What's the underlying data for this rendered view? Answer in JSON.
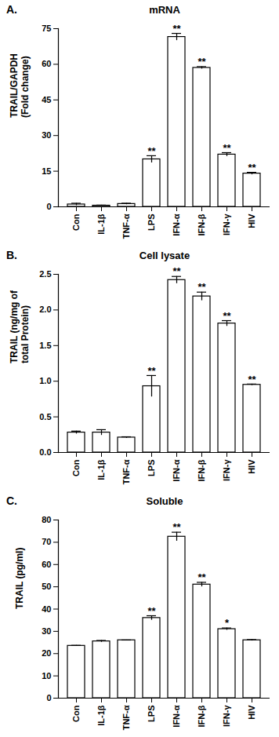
{
  "chart_data": [
    {
      "type": "bar",
      "panel": "A.",
      "title": "mRNA",
      "y_label": "TRAIL/GAPDH\n(Fold change)",
      "categories": [
        "Con",
        "IL-1β",
        "TNF-α",
        "LPS",
        "IFN-α",
        "IFN-β",
        "IFN-γ",
        "HIV"
      ],
      "values": [
        1,
        0.5,
        1.2,
        20,
        71.5,
        58.5,
        22,
        14
      ],
      "errors": [
        0.5,
        0.2,
        0.3,
        1.5,
        1.5,
        0.5,
        0.8,
        0.5
      ],
      "significance": [
        null,
        null,
        null,
        "**",
        "**",
        "**",
        "**",
        "**"
      ],
      "ylim": [
        0,
        75
      ],
      "yticks": [
        0,
        15,
        30,
        45,
        60,
        75
      ]
    },
    {
      "type": "bar",
      "panel": "B.",
      "title": "Cell lysate",
      "y_label": "TRAIL (ng/mg of\ntotal Protein)",
      "categories": [
        "Con",
        "IL-1β",
        "TNF-α",
        "LPS",
        "IFN-α",
        "IFN-β",
        "IFN-γ",
        "HIV"
      ],
      "values": [
        0.28,
        0.28,
        0.21,
        0.93,
        2.42,
        2.19,
        1.81,
        0.95
      ],
      "errors": [
        0.02,
        0.04,
        0.01,
        0.15,
        0.05,
        0.06,
        0.04,
        0.01
      ],
      "significance": [
        null,
        null,
        null,
        "**",
        "**",
        "**",
        "**",
        "**"
      ],
      "ylim": [
        0,
        2.5
      ],
      "yticks": [
        {
          "value": 0,
          "label": "0.0"
        },
        {
          "value": 0.5,
          "label": "0.5"
        },
        {
          "value": 1,
          "label": "1.0"
        },
        {
          "value": 1.5,
          "label": "1.5"
        },
        {
          "value": 2,
          "label": "2.0"
        },
        {
          "value": 2.5,
          "label": "2.5"
        }
      ]
    },
    {
      "type": "bar",
      "panel": "C.",
      "title": "Soluble",
      "y_label": "TRAIL (pg/ml)",
      "categories": [
        "Con",
        "IL-1β",
        "TNF-α",
        "LPS",
        "IFN-α",
        "IFN-β",
        "IFN-γ",
        "HIV"
      ],
      "values": [
        23.5,
        25.5,
        26,
        36,
        72.5,
        51,
        31,
        26
      ],
      "errors": [
        0.2,
        0.4,
        0.1,
        1,
        2,
        1,
        0.5,
        0.3
      ],
      "significance": [
        null,
        null,
        null,
        "**",
        "**",
        "**",
        "*",
        null
      ],
      "ylim": [
        0,
        80
      ],
      "yticks": [
        0,
        10,
        20,
        30,
        40,
        50,
        60,
        70,
        80
      ]
    }
  ]
}
